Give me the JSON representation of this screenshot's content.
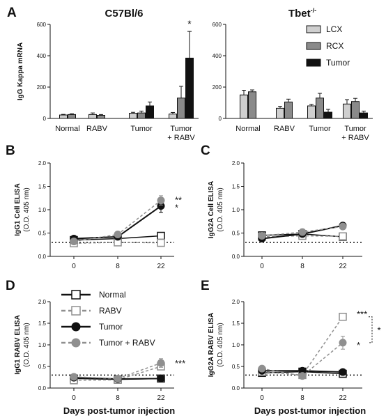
{
  "figure": {
    "panels": [
      "A",
      "B",
      "C",
      "D",
      "E"
    ],
    "legend_A": [
      "LCX",
      "RCX",
      "Tumor"
    ],
    "legend_D": [
      "Normal",
      "RABV",
      "Tumor",
      "Tumor + RABV"
    ]
  },
  "colors": {
    "lcx": "#cfcfcf",
    "rcx": "#8a8a8a",
    "tumor_bar": "#111111",
    "normal_line": "#111111",
    "rabv_line": "#8f8f8f",
    "tumor_line": "#111111",
    "tumor_rabv_line": "#8f8f8f"
  },
  "chart_data": [
    {
      "panel": "A",
      "type": "bar",
      "title": "C57Bl/6",
      "ylabel": "IgG Kappa mRNA",
      "ylim": [
        0,
        600
      ],
      "yticks": [
        "0",
        "200",
        "400",
        "600"
      ],
      "categories": [
        "Normal",
        "RABV",
        "Tumor",
        "Tumor\n+ RABV"
      ],
      "series": [
        {
          "name": "LCX",
          "values": [
            22,
            25,
            33,
            28
          ],
          "errors": [
            4,
            10,
            6,
            10
          ]
        },
        {
          "name": "RCX",
          "values": [
            25,
            20,
            35,
            130
          ],
          "errors": [
            5,
            5,
            12,
            75
          ]
        },
        {
          "name": "Tumor",
          "values": [
            null,
            null,
            80,
            385
          ],
          "errors": [
            null,
            null,
            25,
            170
          ]
        }
      ],
      "annotations": [
        {
          "text": "*",
          "category": 3,
          "series": 2
        }
      ]
    },
    {
      "panel": "A",
      "type": "bar",
      "title": "Tbet-/-",
      "ylabel": "",
      "ylim": [
        0,
        600
      ],
      "yticks": [
        "0",
        "200",
        "400",
        "600"
      ],
      "categories": [
        "Normal",
        "RABV",
        "Tumor",
        "Tumor\n+ RABV"
      ],
      "series": [
        {
          "name": "LCX",
          "values": [
            150,
            65,
            80,
            92
          ],
          "errors": [
            30,
            12,
            10,
            28
          ]
        },
        {
          "name": "RCX",
          "values": [
            170,
            105,
            130,
            108
          ],
          "errors": [
            12,
            18,
            30,
            20
          ]
        },
        {
          "name": "Tumor",
          "values": [
            null,
            null,
            40,
            35
          ],
          "errors": [
            null,
            null,
            18,
            12
          ]
        }
      ]
    },
    {
      "panel": "B",
      "type": "line",
      "ylabel": "IgG1 Cell ELISA\n(O.D. 405 nm)",
      "x": [
        0,
        8,
        22
      ],
      "xticks": [
        "0",
        "8",
        "22"
      ],
      "ylim": [
        0,
        2.0
      ],
      "yticks": [
        "0.0",
        "0.5",
        "1.0",
        "1.5",
        "2.0"
      ],
      "threshold": 0.3,
      "series": [
        {
          "name": "Normal",
          "values": [
            0.35,
            0.38,
            0.44
          ],
          "errors": [
            0.04,
            0.04,
            0.05
          ]
        },
        {
          "name": "RABV",
          "values": [
            0.28,
            0.3,
            0.29
          ],
          "errors": [
            0.03,
            0.03,
            0.03
          ]
        },
        {
          "name": "Tumor",
          "values": [
            0.38,
            0.42,
            1.08
          ],
          "errors": [
            0.04,
            0.05,
            0.14
          ]
        },
        {
          "name": "Tumor + RABV",
          "values": [
            0.32,
            0.47,
            1.2
          ],
          "errors": [
            0.04,
            0.06,
            0.1
          ]
        }
      ],
      "annotations": [
        {
          "text": "**",
          "y": 1.22
        },
        {
          "text": "*",
          "y": 1.05
        }
      ]
    },
    {
      "panel": "C",
      "type": "line",
      "ylabel": "IgG2A Cell ELISA\n(O.D. 405 nm)",
      "x": [
        0,
        8,
        22
      ],
      "xticks": [
        "0",
        "8",
        "22"
      ],
      "ylim": [
        0,
        2.0
      ],
      "yticks": [
        "0.0",
        "0.5",
        "1.0",
        "1.5",
        "2.0"
      ],
      "threshold": 0.3,
      "series": [
        {
          "name": "Normal",
          "values": [
            0.45,
            0.48,
            0.42
          ],
          "errors": [
            0.04,
            0.05,
            0.04
          ]
        },
        {
          "name": "RABV",
          "values": [
            0.42,
            0.44,
            0.43
          ],
          "errors": [
            0.04,
            0.04,
            0.04
          ]
        },
        {
          "name": "Tumor",
          "values": [
            0.38,
            0.48,
            0.66
          ],
          "errors": [
            0.04,
            0.05,
            0.06
          ]
        },
        {
          "name": "Tumor + RABV",
          "values": [
            0.44,
            0.52,
            0.64
          ],
          "errors": [
            0.04,
            0.05,
            0.06
          ]
        }
      ]
    },
    {
      "panel": "D",
      "type": "line",
      "ylabel": "IgG1 RABV ELISA\n(O.D. 405 nm)",
      "xlabel": "Days post-tumor injection",
      "x": [
        0,
        8,
        22
      ],
      "xticks": [
        "0",
        "8",
        "22"
      ],
      "ylim": [
        0,
        2.0
      ],
      "yticks": [
        "0.0",
        "0.5",
        "1.0",
        "1.5",
        "2.0"
      ],
      "threshold": 0.3,
      "series": [
        {
          "name": "Normal",
          "values": [
            0.22,
            0.2,
            0.22
          ],
          "errors": [
            0.03,
            0.02,
            0.03
          ]
        },
        {
          "name": "RABV",
          "values": [
            0.18,
            0.19,
            0.5
          ],
          "errors": [
            0.02,
            0.02,
            0.08
          ]
        },
        {
          "name": "Tumor",
          "values": [
            0.24,
            0.21,
            0.22
          ],
          "errors": [
            0.03,
            0.02,
            0.03
          ]
        },
        {
          "name": "Tumor + RABV",
          "values": [
            0.26,
            0.22,
            0.58
          ],
          "errors": [
            0.03,
            0.02,
            0.1
          ]
        }
      ],
      "annotations": [
        {
          "text": "***",
          "y": 0.58
        }
      ]
    },
    {
      "panel": "E",
      "type": "line",
      "ylabel": "IgG2A RABV ELISA\n(O.D. 405 nm)",
      "xlabel": "Days post-tumor injection",
      "x": [
        0,
        8,
        22
      ],
      "xticks": [
        "0",
        "8",
        "22"
      ],
      "ylim": [
        0,
        2.0
      ],
      "yticks": [
        "0.0",
        "0.5",
        "1.0",
        "1.5",
        "2.0"
      ],
      "threshold": 0.3,
      "series": [
        {
          "name": "Normal",
          "values": [
            0.35,
            0.38,
            0.33
          ],
          "errors": [
            0.03,
            0.03,
            0.03
          ]
        },
        {
          "name": "RABV",
          "values": [
            0.38,
            0.3,
            1.65
          ],
          "errors": [
            0.04,
            0.04,
            0.08
          ]
        },
        {
          "name": "Tumor",
          "values": [
            0.4,
            0.4,
            0.37
          ],
          "errors": [
            0.03,
            0.03,
            0.03
          ]
        },
        {
          "name": "Tumor + RABV",
          "values": [
            0.45,
            0.28,
            1.05
          ],
          "errors": [
            0.04,
            0.04,
            0.15
          ]
        }
      ],
      "annotations": [
        {
          "text": "***",
          "y": 1.72
        },
        {
          "text": "*",
          "y": 1.0
        },
        {
          "text": "*",
          "bracket": [
            1.65,
            1.05
          ]
        }
      ]
    }
  ]
}
